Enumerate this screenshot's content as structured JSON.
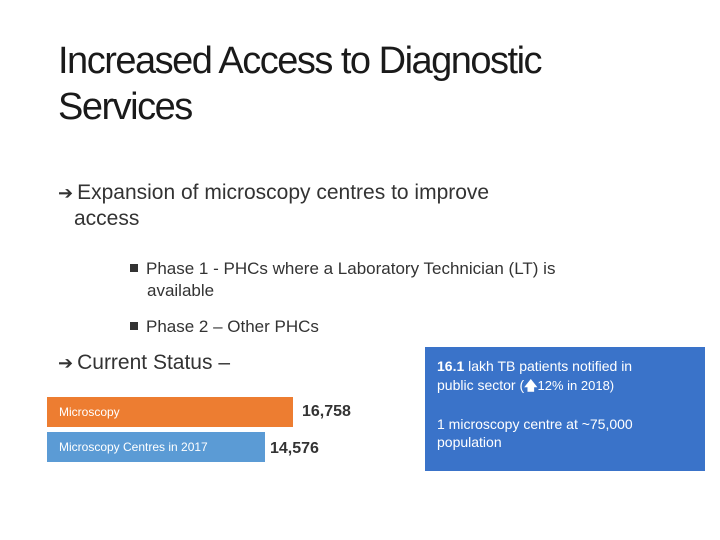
{
  "slide": {
    "title_line1": "Increased Access to Diagnostic",
    "title_line2": "Services",
    "bullet1": {
      "line1": "Expansion of microscopy centres to improve",
      "line2": "access"
    },
    "sub_bullets": [
      {
        "line1": "Phase 1 - PHCs where a Laboratory Technician (LT) is",
        "line2": "available"
      },
      {
        "line1": "Phase 2 – Other PHCs",
        "line2": ""
      }
    ],
    "status_label": "Current Status –"
  },
  "chart_data": {
    "type": "bar",
    "orientation": "horizontal",
    "categories": [
      "Microscopy",
      "Microscopy Centres  in 2017"
    ],
    "values": [
      16758,
      14576
    ],
    "value_labels": [
      "16,758",
      "14,576"
    ],
    "colors": [
      "#ed7d31",
      "#5b9bd5"
    ]
  },
  "info_panel": {
    "line1_bold": "16.1",
    "line1_rest": " lakh TB patients notified in",
    "line2_pre": "public sector (",
    "line2_icon": "up-arrow-icon",
    "line2_post": "12% in 2018)",
    "line3": "1 microscopy centre at ~75,000",
    "line4": "population",
    "color": "#3a73c9"
  }
}
